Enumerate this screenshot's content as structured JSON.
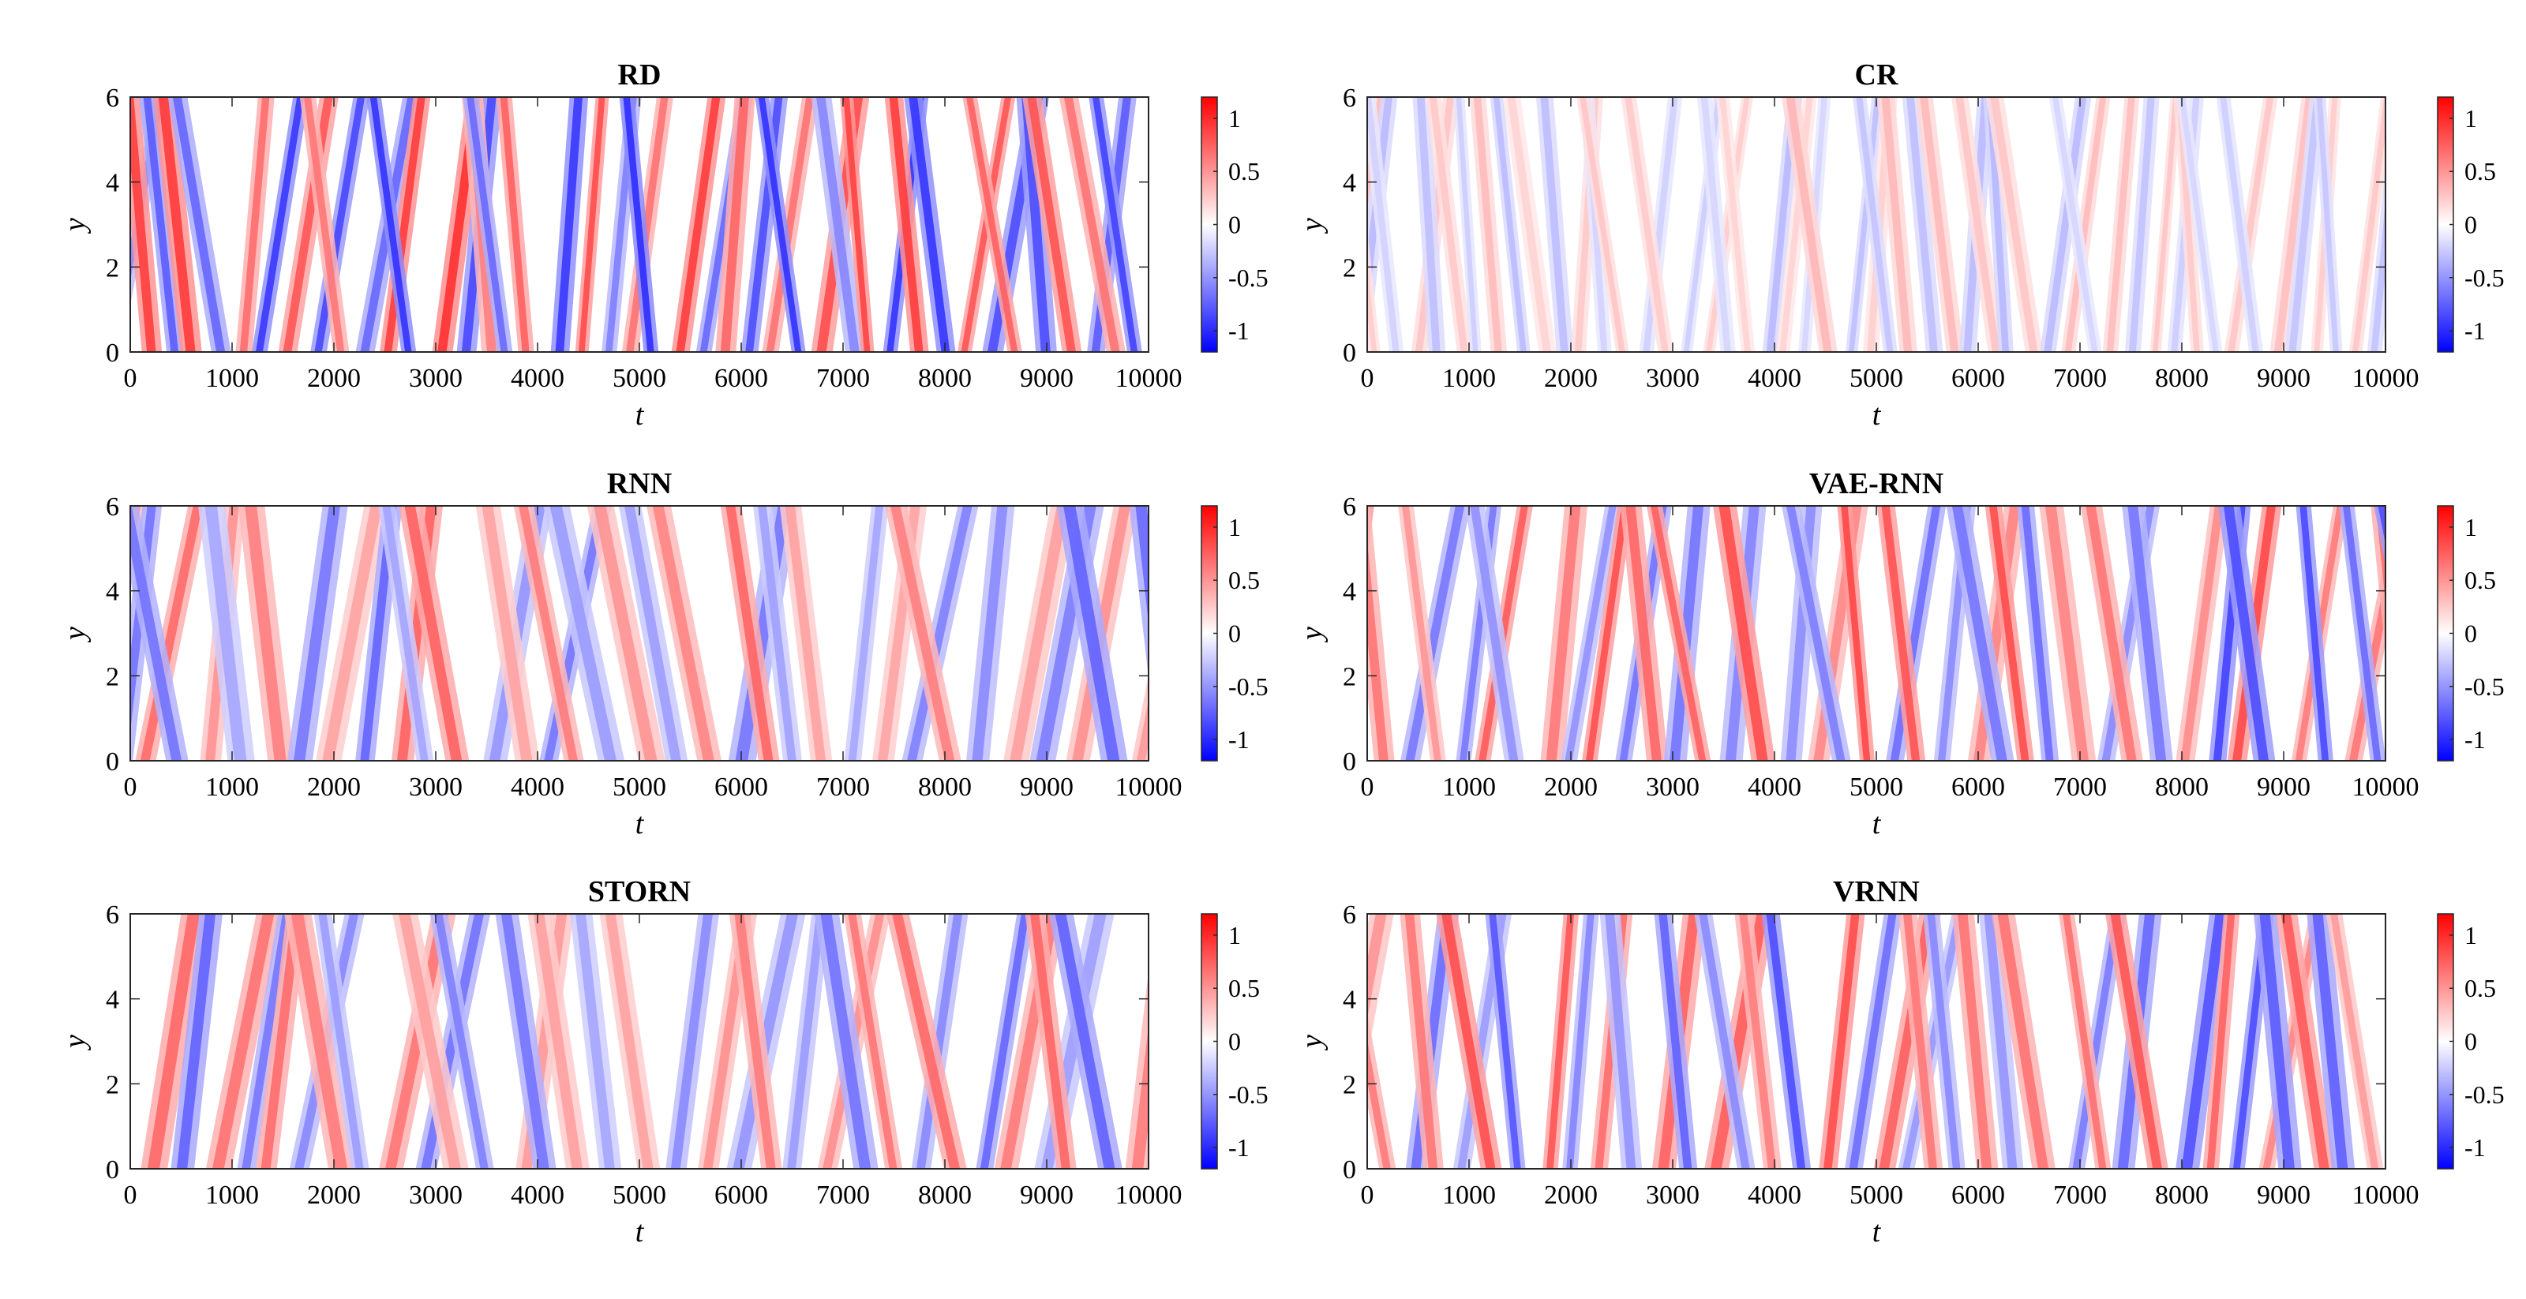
{
  "chart_data": [
    {
      "type": "heatmap",
      "title": "RD",
      "xlabel": "t",
      "ylabel": "y",
      "xlim": [
        0,
        10000
      ],
      "ylim": [
        0,
        6
      ],
      "xticks": [
        0,
        1000,
        2000,
        3000,
        4000,
        5000,
        6000,
        7000,
        8000,
        9000,
        10000
      ],
      "yticks": [
        0,
        2,
        4,
        6
      ],
      "colorbar": {
        "colormap": "blue-white-red",
        "clim": [
          -1.2,
          1.2
        ],
        "ticks": [
          1,
          0.5,
          0,
          -0.5,
          -1
        ],
        "tick_labels": [
          "1",
          "0.5",
          "0",
          "-0.5",
          "-1"
        ]
      },
      "field": {
        "amplitude": 1.0,
        "stripe_spacing_t": 240,
        "seed": 1
      }
    },
    {
      "type": "heatmap",
      "title": "CR",
      "xlabel": "t",
      "ylabel": "y",
      "xlim": [
        0,
        10000
      ],
      "ylim": [
        0,
        6
      ],
      "xticks": [
        0,
        1000,
        2000,
        3000,
        4000,
        5000,
        6000,
        7000,
        8000,
        9000,
        10000
      ],
      "yticks": [
        0,
        2,
        4,
        6
      ],
      "colorbar": {
        "colormap": "blue-white-red",
        "clim": [
          -1.2,
          1.2
        ],
        "ticks": [
          1,
          0.5,
          0,
          -0.5,
          -1
        ],
        "tick_labels": [
          "1",
          "0.5",
          "0",
          "-0.5",
          "-1"
        ]
      },
      "field": {
        "amplitude": 0.35,
        "stripe_spacing_t": 200,
        "seed": 2
      }
    },
    {
      "type": "heatmap",
      "title": "RNN",
      "xlabel": "t",
      "ylabel": "y",
      "xlim": [
        0,
        10000
      ],
      "ylim": [
        0,
        6
      ],
      "xticks": [
        0,
        1000,
        2000,
        3000,
        4000,
        5000,
        6000,
        7000,
        8000,
        9000,
        10000
      ],
      "yticks": [
        0,
        2,
        4,
        6
      ],
      "colorbar": {
        "colormap": "blue-white-red",
        "clim": [
          -1.2,
          1.2
        ],
        "ticks": [
          1,
          0.5,
          0,
          -0.5,
          -1
        ],
        "tick_labels": [
          "1",
          "0.5",
          "0",
          "-0.5",
          "-1"
        ]
      },
      "field": {
        "amplitude": 0.75,
        "stripe_spacing_t": 300,
        "seed": 3
      }
    },
    {
      "type": "heatmap",
      "title": "VAE-RNN",
      "xlabel": "t",
      "ylabel": "y",
      "xlim": [
        0,
        10000
      ],
      "ylim": [
        0,
        6
      ],
      "xticks": [
        0,
        1000,
        2000,
        3000,
        4000,
        5000,
        6000,
        7000,
        8000,
        9000,
        10000
      ],
      "yticks": [
        0,
        2,
        4,
        6
      ],
      "colorbar": {
        "colormap": "blue-white-red",
        "clim": [
          -1.2,
          1.2
        ],
        "ticks": [
          1,
          0.5,
          0,
          -0.5,
          -1
        ],
        "tick_labels": [
          "1",
          "0.5",
          "0",
          "-0.5",
          "-1"
        ]
      },
      "field": {
        "amplitude": 0.9,
        "stripe_spacing_t": 260,
        "seed": 4
      }
    },
    {
      "type": "heatmap",
      "title": "STORN",
      "xlabel": "t",
      "ylabel": "y",
      "xlim": [
        0,
        10000
      ],
      "ylim": [
        0,
        6
      ],
      "xticks": [
        0,
        1000,
        2000,
        3000,
        4000,
        5000,
        6000,
        7000,
        8000,
        9000,
        10000
      ],
      "yticks": [
        0,
        2,
        4,
        6
      ],
      "colorbar": {
        "colormap": "blue-white-red",
        "clim": [
          -1.2,
          1.2
        ],
        "ticks": [
          1,
          0.5,
          0,
          -0.5,
          -1
        ],
        "tick_labels": [
          "1",
          "0.5",
          "0",
          "-0.5",
          "-1"
        ]
      },
      "field": {
        "amplitude": 0.75,
        "stripe_spacing_t": 300,
        "seed": 5
      }
    },
    {
      "type": "heatmap",
      "title": "VRNN",
      "xlabel": "t",
      "ylabel": "y",
      "xlim": [
        0,
        10000
      ],
      "ylim": [
        0,
        6
      ],
      "xticks": [
        0,
        1000,
        2000,
        3000,
        4000,
        5000,
        6000,
        7000,
        8000,
        9000,
        10000
      ],
      "yticks": [
        0,
        2,
        4,
        6
      ],
      "colorbar": {
        "colormap": "blue-white-red",
        "clim": [
          -1.2,
          1.2
        ],
        "ticks": [
          1,
          0.5,
          0,
          -0.5,
          -1
        ],
        "tick_labels": [
          "1",
          "0.5",
          "0",
          "-0.5",
          "-1"
        ]
      },
      "field": {
        "amplitude": 0.85,
        "stripe_spacing_t": 270,
        "seed": 6
      }
    }
  ]
}
